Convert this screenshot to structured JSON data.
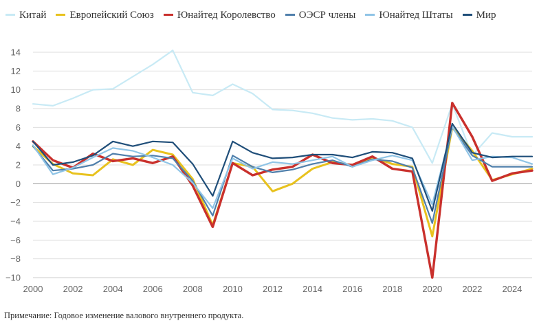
{
  "chart_data": {
    "type": "line",
    "title": "",
    "xlabel": "",
    "ylabel": "",
    "xlim": [
      2000,
      2025
    ],
    "ylim": [
      -10,
      14
    ],
    "x_ticks": [
      2000,
      2002,
      2004,
      2006,
      2008,
      2010,
      2012,
      2014,
      2016,
      2018,
      2020,
      2022,
      2024
    ],
    "y_ticks": [
      -10,
      -8,
      -6,
      -4,
      -2,
      0,
      2,
      4,
      6,
      8,
      10,
      12,
      14
    ],
    "grid": "horizontal",
    "legend": "top-left",
    "x": [
      2000,
      2001,
      2002,
      2003,
      2004,
      2005,
      2006,
      2007,
      2008,
      2009,
      2010,
      2011,
      2012,
      2013,
      2014,
      2015,
      2016,
      2017,
      2018,
      2019,
      2020,
      2021,
      2022,
      2023,
      2024,
      2025
    ],
    "series": [
      {
        "name": "Китай",
        "color": "#c8eaf5",
        "width": 2.2,
        "values": [
          8.5,
          8.3,
          9.1,
          10.0,
          10.1,
          11.4,
          12.7,
          14.2,
          9.7,
          9.4,
          10.6,
          9.6,
          7.9,
          7.8,
          7.5,
          7.0,
          6.8,
          6.9,
          6.7,
          6.0,
          2.2,
          8.5,
          3.0,
          5.4,
          5.0,
          5.0
        ]
      },
      {
        "name": "Европейский Союз",
        "color": "#e8c21e",
        "width": 3.0,
        "values": [
          4.0,
          2.1,
          1.1,
          0.9,
          2.6,
          2.0,
          3.6,
          3.1,
          0.5,
          -4.4,
          2.2,
          1.8,
          -0.8,
          0.0,
          1.6,
          2.3,
          2.0,
          2.8,
          2.1,
          1.8,
          -5.6,
          6.0,
          3.5,
          0.4,
          1.0,
          1.6
        ]
      },
      {
        "name": "Юнайтед Королевство",
        "color": "#c9302c",
        "width": 3.4,
        "values": [
          4.5,
          2.5,
          1.7,
          3.2,
          2.4,
          2.7,
          2.2,
          2.9,
          -0.2,
          -4.6,
          2.2,
          0.9,
          1.5,
          1.8,
          3.1,
          2.2,
          2.0,
          2.9,
          1.6,
          1.3,
          -10.0,
          8.6,
          5.0,
          0.3,
          1.1,
          1.4
        ]
      },
      {
        "name": "ОЭСР члены",
        "color": "#4f7fab",
        "width": 2.2,
        "values": [
          4.0,
          1.4,
          1.6,
          2.0,
          3.2,
          2.9,
          3.0,
          2.7,
          0.3,
          -3.4,
          3.0,
          1.8,
          1.2,
          1.5,
          2.1,
          2.5,
          1.8,
          2.6,
          2.4,
          1.7,
          -4.2,
          6.0,
          3.0,
          1.8,
          1.8,
          1.8
        ]
      },
      {
        "name": "Юнайтед Штаты",
        "color": "#8fc4e6",
        "width": 2.2,
        "values": [
          4.1,
          1.0,
          1.7,
          2.8,
          3.8,
          3.5,
          2.8,
          2.0,
          0.1,
          -2.6,
          2.7,
          1.6,
          2.3,
          2.1,
          2.5,
          2.9,
          1.8,
          2.5,
          3.0,
          2.5,
          -2.2,
          6.1,
          2.5,
          2.9,
          2.8,
          2.1
        ]
      },
      {
        "name": "Мир",
        "color": "#1f4e79",
        "width": 2.2,
        "values": [
          4.5,
          2.0,
          2.3,
          3.0,
          4.5,
          4.0,
          4.5,
          4.4,
          2.1,
          -1.3,
          4.5,
          3.3,
          2.7,
          2.8,
          3.1,
          3.1,
          2.8,
          3.4,
          3.3,
          2.7,
          -2.9,
          6.4,
          3.3,
          2.8,
          2.9,
          2.9
        ]
      }
    ]
  },
  "note": "Примечание: Годовое изменение валового внутреннего продукта."
}
